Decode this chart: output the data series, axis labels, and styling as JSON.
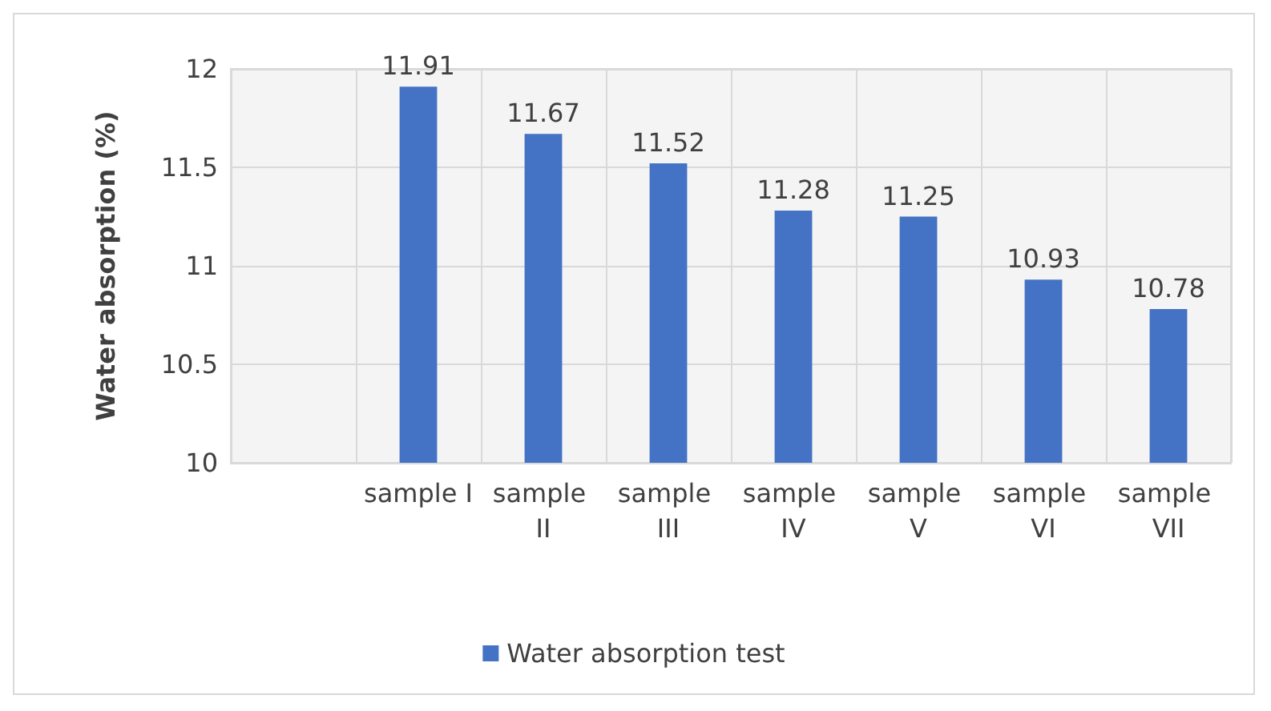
{
  "chart_data": {
    "type": "bar",
    "ylabel": "Water absorption (%)",
    "categories": [
      null,
      "sample I",
      "sample II",
      "sample III",
      "sample IV",
      "sample V",
      "sample VI",
      "sample VII"
    ],
    "series": [
      {
        "name": "Water absorption test",
        "color": "#4472c4",
        "values": [
          null,
          11.91,
          11.67,
          11.52,
          11.28,
          11.25,
          10.93,
          10.78
        ]
      }
    ],
    "ylim": [
      10,
      12
    ],
    "yticks": [
      10,
      10.5,
      11,
      11.5,
      12
    ],
    "grid": true,
    "legend": "bottom",
    "data_labels": true
  }
}
